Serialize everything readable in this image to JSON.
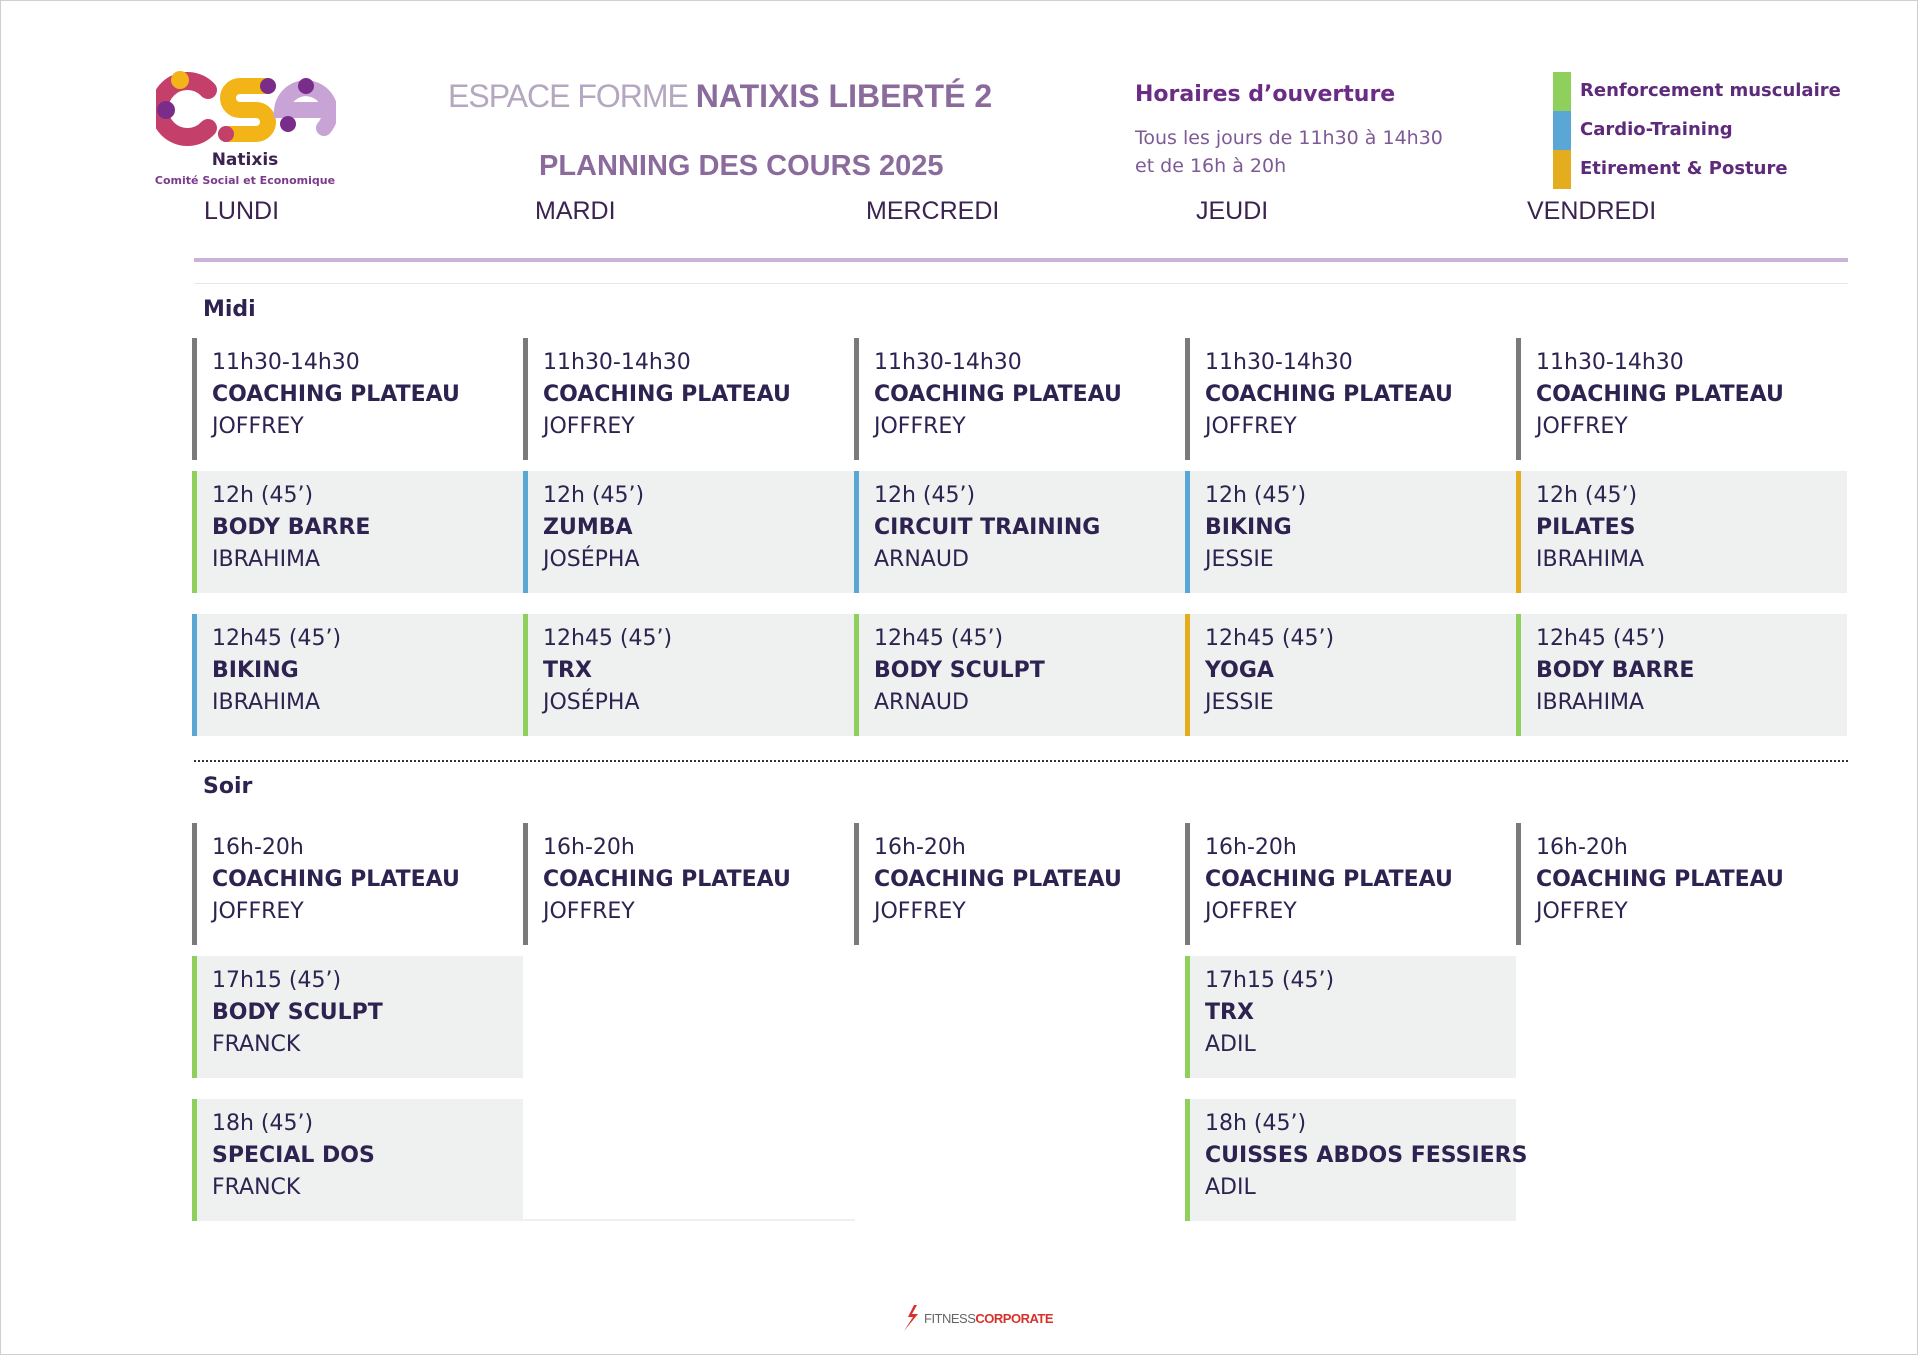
{
  "logo": {
    "name": "Natixis",
    "subtitle": "Comité Social et Economique",
    "colors": [
      "#f2b417",
      "#c4406a",
      "#7a2c8a",
      "#c7a3d6"
    ]
  },
  "header": {
    "title_light": "ESPACE FORME ",
    "title_strong": "NATIXIS LIBERTÉ 2",
    "subtitle": "PLANNING DES COURS 2025"
  },
  "hours": {
    "title": "Horaires d’ouverture",
    "line1": "Tous les jours de 11h30 à 14h30",
    "line2": "et de 16h à 20h"
  },
  "legend": [
    {
      "label": "Renforcement musculaire",
      "color": "#8ed05b"
    },
    {
      "label": "Cardio-Training",
      "color": "#5aa7d6"
    },
    {
      "label": "Etirement & Posture",
      "color": "#e4ac1f"
    }
  ],
  "days": [
    "LUNDI",
    "MARDI",
    "MERCREDI",
    "JEUDI",
    "VENDREDI"
  ],
  "sections": {
    "midi": "Midi",
    "soir": "Soir"
  },
  "midi": {
    "row1": [
      {
        "time": "11h30-14h30",
        "name": "COACHING PLATEAU",
        "coach": "JOFFREY",
        "category": "plateau"
      },
      {
        "time": "11h30-14h30",
        "name": "COACHING PLATEAU",
        "coach": "JOFFREY",
        "category": "plateau"
      },
      {
        "time": "11h30-14h30",
        "name": "COACHING PLATEAU",
        "coach": "JOFFREY",
        "category": "plateau"
      },
      {
        "time": "11h30-14h30",
        "name": "COACHING PLATEAU",
        "coach": "JOFFREY",
        "category": "plateau"
      },
      {
        "time": "11h30-14h30",
        "name": "COACHING PLATEAU",
        "coach": "JOFFREY",
        "category": "plateau"
      }
    ],
    "row2": [
      {
        "time": "12h (45’)",
        "name": "BODY BARRE",
        "coach": "IBRAHIMA",
        "category": "Renforcement musculaire"
      },
      {
        "time": "12h (45’)",
        "name": "ZUMBA",
        "coach": "JOSÉPHA",
        "category": "Cardio-Training"
      },
      {
        "time": "12h (45’)",
        "name": "CIRCUIT TRAINING",
        "coach": "ARNAUD",
        "category": "Cardio-Training"
      },
      {
        "time": "12h (45’)",
        "name": "BIKING",
        "coach": "JESSIE",
        "category": "Cardio-Training"
      },
      {
        "time": "12h (45’)",
        "name": "PILATES",
        "coach": "IBRAHIMA",
        "category": "Etirement & Posture"
      }
    ],
    "row3": [
      {
        "time": "12h45 (45’)",
        "name": "BIKING",
        "coach": "IBRAHIMA",
        "category": "Cardio-Training"
      },
      {
        "time": "12h45 (45’)",
        "name": "TRX",
        "coach": "JOSÉPHA",
        "category": "Renforcement musculaire"
      },
      {
        "time": "12h45 (45’)",
        "name": "BODY SCULPT",
        "coach": "ARNAUD",
        "category": "Renforcement musculaire"
      },
      {
        "time": "12h45 (45’)",
        "name": "YOGA",
        "coach": "JESSIE",
        "category": "Etirement & Posture"
      },
      {
        "time": "12h45 (45’)",
        "name": "BODY BARRE",
        "coach": "IBRAHIMA",
        "category": "Renforcement musculaire"
      }
    ]
  },
  "soir": {
    "row1": [
      {
        "time": "16h-20h",
        "name": "COACHING PLATEAU",
        "coach": "JOFFREY",
        "category": "plateau"
      },
      {
        "time": "16h-20h",
        "name": "COACHING PLATEAU",
        "coach": "JOFFREY",
        "category": "plateau"
      },
      {
        "time": "16h-20h",
        "name": "COACHING PLATEAU",
        "coach": "JOFFREY",
        "category": "plateau"
      },
      {
        "time": "16h-20h",
        "name": "COACHING PLATEAU",
        "coach": "JOFFREY",
        "category": "plateau"
      },
      {
        "time": "16h-20h",
        "name": "COACHING PLATEAU",
        "coach": "JOFFREY",
        "category": "plateau"
      }
    ],
    "lundi": [
      {
        "time": "17h15 (45’)",
        "name": "BODY SCULPT",
        "coach": "FRANCK",
        "category": "Renforcement musculaire"
      },
      {
        "time": "18h (45’)",
        "name": "SPECIAL DOS",
        "coach": "FRANCK",
        "category": "Renforcement musculaire"
      }
    ],
    "jeudi": [
      {
        "time": "17h15 (45’)",
        "name": "TRX",
        "coach": "ADIL",
        "category": "Renforcement musculaire"
      },
      {
        "time": "18h (45’)",
        "name": "CUISSES ABDOS FESSIERS",
        "coach": "ADIL",
        "category": "Renforcement musculaire"
      }
    ]
  },
  "footer": {
    "part1": "FITNESS",
    "part2": "CORPORATE",
    "icon": "runner-icon"
  }
}
